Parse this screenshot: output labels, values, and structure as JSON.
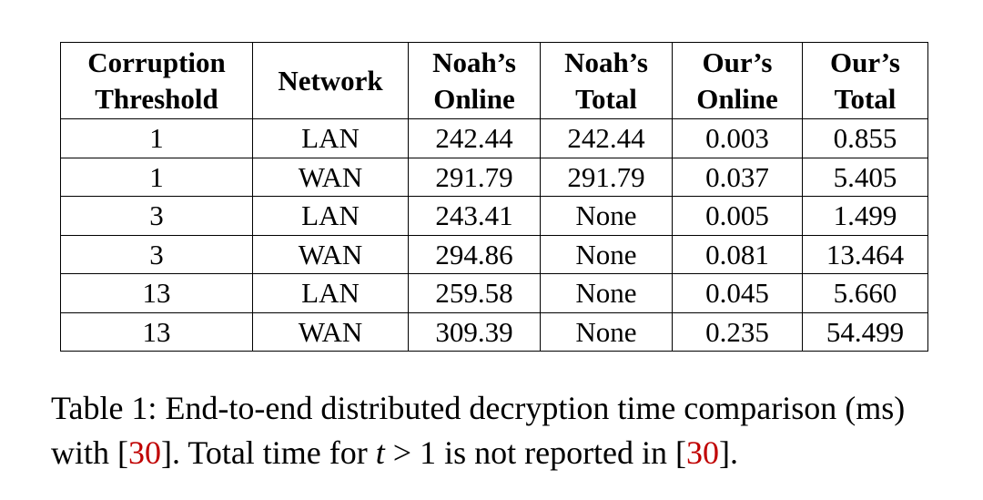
{
  "table": {
    "headers": [
      [
        "Corruption",
        "Threshold"
      ],
      [
        "Network"
      ],
      [
        "Noah’s",
        "Online"
      ],
      [
        "Noah’s",
        "Total"
      ],
      [
        "Our’s",
        "Online"
      ],
      [
        "Our’s",
        "Total"
      ]
    ],
    "rows": [
      [
        "1",
        "LAN",
        "242.44",
        "242.44",
        "0.003",
        "0.855"
      ],
      [
        "1",
        "WAN",
        "291.79",
        "291.79",
        "0.037",
        "5.405"
      ],
      [
        "3",
        "LAN",
        "243.41",
        "None",
        "0.005",
        "1.499"
      ],
      [
        "3",
        "WAN",
        "294.86",
        "None",
        "0.081",
        "13.464"
      ],
      [
        "13",
        "LAN",
        "259.58",
        "None",
        "0.045",
        "5.660"
      ],
      [
        "13",
        "WAN",
        "309.39",
        "None",
        "0.235",
        "54.499"
      ]
    ]
  },
  "caption": {
    "part1": "Table 1: End-to-end distributed decryption time comparison (ms) with [",
    "ref1": "30",
    "part2": "]. Total time for ",
    "var": "t",
    "part3": " > 1 is not reported in [",
    "ref2": "30",
    "part4": "]."
  }
}
